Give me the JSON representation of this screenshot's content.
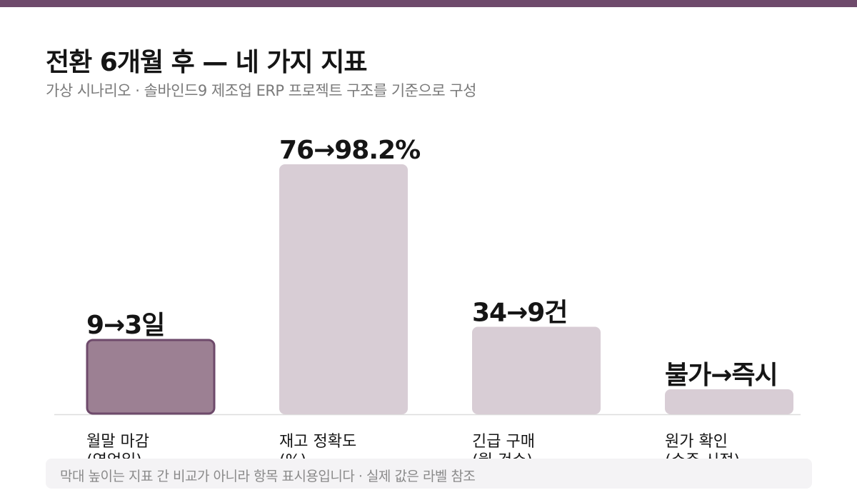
{
  "header": {
    "title": "전환 6개월 후 — 네 가지 지표",
    "subtitle": "가상 시나리오 · 솔바인드9 제조업 ERP 프로젝트 구조를 기준으로 구성"
  },
  "colors": {
    "top_band": "#6e4a6b",
    "highlight_fill": "#9c8093",
    "highlight_stroke": "#6e4a6b",
    "bar_fill": "#d8cdd5",
    "baseline": "#dddddd"
  },
  "chart_data": {
    "type": "bar",
    "categories": [
      "월말 마감",
      "재고 정확도",
      "긴급 구매",
      "원가 확인"
    ],
    "category_subs": [
      "(영업일)",
      "(%)",
      "(월 건수)",
      "(수주 시점)"
    ],
    "data_labels": [
      "9→3일",
      "76→98.2%",
      "34→9건",
      "불가→즉시"
    ],
    "values": [
      0.3,
      1.0,
      0.35,
      0.1
    ],
    "highlight_index": 0,
    "xlabel": "",
    "ylabel": "",
    "grid": false
  },
  "footer": {
    "note": "막대 높이는 지표 간 비교가 아니라 항목 표시용입니다 · 실제 값은 라벨 참조"
  }
}
